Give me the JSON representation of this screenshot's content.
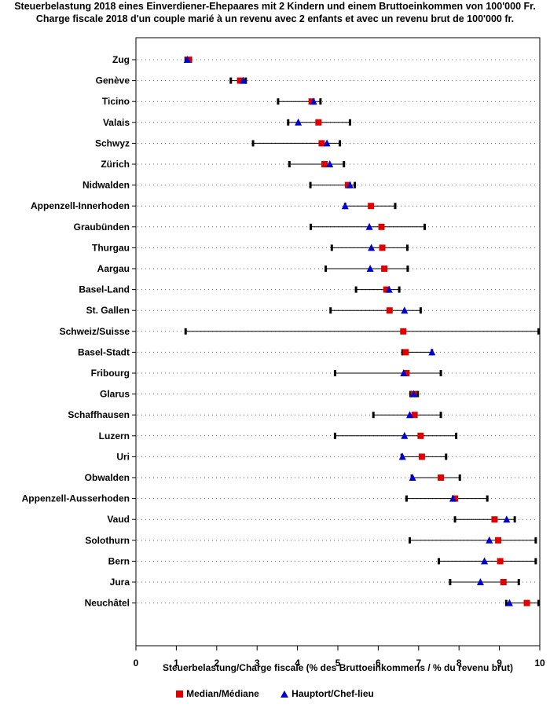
{
  "chart_data": {
    "type": "scatter",
    "title": "Steuerbelastung 2018 eines Einverdiener-Ehepaares mit 2 Kindern und einem Bruttoeinkommen von 100'000 Fr.",
    "subtitle": "Charge fiscale 2018 d'un couple marié à un revenu avec 2 enfants et avec un revenu brut de 100'000 fr.",
    "xlabel": "Steuerbelastung/Charge fiscale (% des Bruttoeinkommens / % du revenu brut)",
    "ylabel": "",
    "xlim": [
      0,
      10
    ],
    "xticks": [
      "0",
      "1",
      "2",
      "3",
      "4",
      "5",
      "6",
      "7",
      "8",
      "9",
      "10"
    ],
    "legend": {
      "median": "Median/Médiane",
      "capital": "Hauptort/Chef-lieu",
      "position": "bottom-center",
      "median_color": "#e00000",
      "capital_color": "#0000d0"
    },
    "rows": [
      {
        "label": "Zug",
        "min": 1.23,
        "max": 1.36,
        "median": 1.3,
        "capital": 1.27
      },
      {
        "label": "Genève",
        "min": 2.35,
        "max": 2.72,
        "median": 2.58,
        "capital": 2.66
      },
      {
        "label": "Ticino",
        "min": 3.52,
        "max": 4.57,
        "median": 4.35,
        "capital": 4.4
      },
      {
        "label": "Valais",
        "min": 3.77,
        "max": 5.3,
        "median": 4.52,
        "capital": 4.02
      },
      {
        "label": "Schwyz",
        "min": 2.9,
        "max": 5.05,
        "median": 4.6,
        "capital": 4.73
      },
      {
        "label": "Zürich",
        "min": 3.8,
        "max": 5.15,
        "median": 4.67,
        "capital": 4.8
      },
      {
        "label": "Nidwalden",
        "min": 4.32,
        "max": 5.42,
        "median": 5.25,
        "capital": 5.3
      },
      {
        "label": "Appenzell-Innerhoden",
        "min": 5.18,
        "max": 6.42,
        "median": 5.82,
        "capital": 5.18
      },
      {
        "label": "Graubünden",
        "min": 4.33,
        "max": 7.15,
        "median": 6.08,
        "capital": 5.78
      },
      {
        "label": "Thurgau",
        "min": 4.85,
        "max": 6.72,
        "median": 6.1,
        "capital": 5.83
      },
      {
        "label": "Aargau",
        "min": 4.7,
        "max": 6.73,
        "median": 6.15,
        "capital": 5.8
      },
      {
        "label": "Basel-Land",
        "min": 5.45,
        "max": 6.52,
        "median": 6.2,
        "capital": 6.27
      },
      {
        "label": "St. Gallen",
        "min": 4.82,
        "max": 7.05,
        "median": 6.28,
        "capital": 6.65
      },
      {
        "label": "Schweiz/Suisse",
        "min": 1.23,
        "max": 9.97,
        "median": 6.62,
        "capital": null
      },
      {
        "label": "Basel-Stadt",
        "min": 6.6,
        "max": 7.33,
        "median": 6.68,
        "capital": 7.33
      },
      {
        "label": "Fribourg",
        "min": 4.93,
        "max": 7.55,
        "median": 6.7,
        "capital": 6.63
      },
      {
        "label": "Glarus",
        "min": 6.8,
        "max": 6.98,
        "median": 6.88,
        "capital": 6.88
      },
      {
        "label": "Schaffhausen",
        "min": 5.88,
        "max": 7.55,
        "median": 6.9,
        "capital": 6.78
      },
      {
        "label": "Luzern",
        "min": 4.93,
        "max": 7.93,
        "median": 7.05,
        "capital": 6.65
      },
      {
        "label": "Uri",
        "min": 6.58,
        "max": 7.68,
        "median": 7.08,
        "capital": 6.6
      },
      {
        "label": "Obwalden",
        "min": 6.83,
        "max": 8.02,
        "median": 7.55,
        "capital": 6.85
      },
      {
        "label": "Appenzell-Ausserhoden",
        "min": 6.7,
        "max": 8.7,
        "median": 7.9,
        "capital": 7.85
      },
      {
        "label": "Vaud",
        "min": 7.9,
        "max": 9.38,
        "median": 8.88,
        "capital": 9.18
      },
      {
        "label": "Solothurn",
        "min": 6.78,
        "max": 9.9,
        "median": 8.97,
        "capital": 8.75
      },
      {
        "label": "Bern",
        "min": 7.5,
        "max": 9.9,
        "median": 9.02,
        "capital": 8.63
      },
      {
        "label": "Jura",
        "min": 7.78,
        "max": 9.48,
        "median": 9.1,
        "capital": 8.53
      },
      {
        "label": "Neuchâtel",
        "min": 9.17,
        "max": 9.97,
        "median": 9.68,
        "capital": 9.25
      }
    ]
  }
}
